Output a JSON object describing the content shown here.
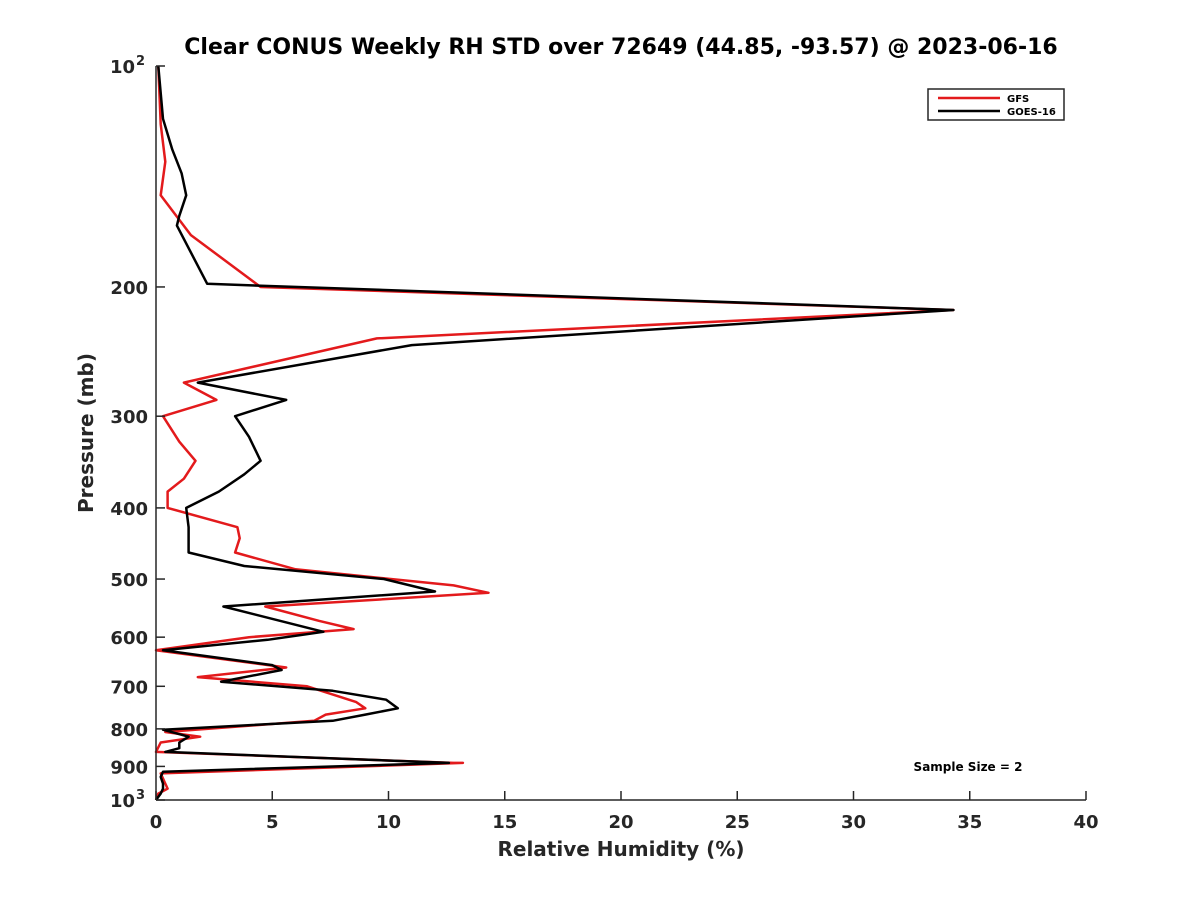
{
  "chart_data": {
    "type": "line",
    "title": "Clear CONUS Weekly RH STD over 72649 (44.85, -93.57) @ 2023-06-16",
    "xlabel": "Relative Humidity (%)",
    "ylabel": "Pressure (mb)",
    "xlim": [
      0,
      40
    ],
    "ylim": [
      100,
      1000
    ],
    "y_scale": "log",
    "y_reversed": true,
    "x_ticks": [
      0,
      5,
      10,
      15,
      20,
      25,
      30,
      35,
      40
    ],
    "y_ticks": [
      {
        "value": 100,
        "label": "10",
        "sup": "2"
      },
      {
        "value": 200,
        "label": "200",
        "sup": ""
      },
      {
        "value": 300,
        "label": "300",
        "sup": ""
      },
      {
        "value": 400,
        "label": "400",
        "sup": ""
      },
      {
        "value": 500,
        "label": "500",
        "sup": ""
      },
      {
        "value": 600,
        "label": "600",
        "sup": ""
      },
      {
        "value": 700,
        "label": "700",
        "sup": ""
      },
      {
        "value": 800,
        "label": "800",
        "sup": ""
      },
      {
        "value": 900,
        "label": "900",
        "sup": ""
      },
      {
        "value": 1000,
        "label": "10",
        "sup": "3"
      }
    ],
    "grid": false,
    "legend_position": "top-right",
    "annotation": "Sample Size = 2",
    "series": [
      {
        "name": "GFS",
        "color": "#e31a1c",
        "points": [
          [
            0.1,
            100
          ],
          [
            0.2,
            120
          ],
          [
            0.4,
            135
          ],
          [
            0.2,
            150
          ],
          [
            1.5,
            170
          ],
          [
            4.5,
            200
          ],
          [
            34.3,
            215
          ],
          [
            9.5,
            235
          ],
          [
            1.2,
            270
          ],
          [
            2.6,
            285
          ],
          [
            0.3,
            300
          ],
          [
            1.0,
            325
          ],
          [
            1.7,
            345
          ],
          [
            1.2,
            365
          ],
          [
            0.5,
            380
          ],
          [
            0.5,
            400
          ],
          [
            3.5,
            425
          ],
          [
            3.6,
            440
          ],
          [
            3.4,
            460
          ],
          [
            6.0,
            485
          ],
          [
            12.8,
            510
          ],
          [
            14.3,
            522
          ],
          [
            4.7,
            545
          ],
          [
            7.0,
            570
          ],
          [
            8.5,
            585
          ],
          [
            4.0,
            600
          ],
          [
            0.0,
            625
          ],
          [
            5.6,
            660
          ],
          [
            1.8,
            680
          ],
          [
            6.5,
            700
          ],
          [
            8.6,
            735
          ],
          [
            9.0,
            750
          ],
          [
            7.3,
            765
          ],
          [
            6.8,
            780
          ],
          [
            0.4,
            808
          ],
          [
            1.9,
            820
          ],
          [
            0.2,
            835
          ],
          [
            0.0,
            860
          ],
          [
            12.8,
            890
          ],
          [
            13.2,
            890
          ],
          [
            0.2,
            920
          ],
          [
            0.4,
            950
          ],
          [
            0.5,
            965
          ],
          [
            0.1,
            980
          ],
          [
            0.0,
            1000
          ]
        ]
      },
      {
        "name": "GOES-16",
        "color": "#000000",
        "points": [
          [
            0.1,
            100
          ],
          [
            0.3,
            118
          ],
          [
            0.7,
            130
          ],
          [
            1.1,
            140
          ],
          [
            1.3,
            150
          ],
          [
            1.0,
            160
          ],
          [
            0.9,
            165
          ],
          [
            2.2,
            198
          ],
          [
            34.3,
            215
          ],
          [
            11.0,
            240
          ],
          [
            1.8,
            270
          ],
          [
            5.6,
            285
          ],
          [
            3.4,
            300
          ],
          [
            4.0,
            320
          ],
          [
            4.5,
            345
          ],
          [
            3.8,
            360
          ],
          [
            2.7,
            380
          ],
          [
            1.3,
            400
          ],
          [
            1.4,
            425
          ],
          [
            1.4,
            450
          ],
          [
            1.4,
            460
          ],
          [
            3.8,
            480
          ],
          [
            9.8,
            500
          ],
          [
            12.0,
            520
          ],
          [
            2.9,
            545
          ],
          [
            7.2,
            590
          ],
          [
            4.8,
            605
          ],
          [
            0.3,
            625
          ],
          [
            5.0,
            655
          ],
          [
            5.4,
            665
          ],
          [
            2.8,
            690
          ],
          [
            7.6,
            710
          ],
          [
            9.9,
            730
          ],
          [
            10.4,
            750
          ],
          [
            9.0,
            765
          ],
          [
            7.6,
            780
          ],
          [
            0.3,
            802
          ],
          [
            1.4,
            820
          ],
          [
            1.0,
            835
          ],
          [
            1.0,
            850
          ],
          [
            0.4,
            860
          ],
          [
            12.6,
            890
          ],
          [
            0.3,
            915
          ],
          [
            0.2,
            930
          ],
          [
            0.3,
            950
          ],
          [
            0.3,
            965
          ],
          [
            0.2,
            980
          ],
          [
            0.0,
            1000
          ]
        ]
      }
    ]
  }
}
